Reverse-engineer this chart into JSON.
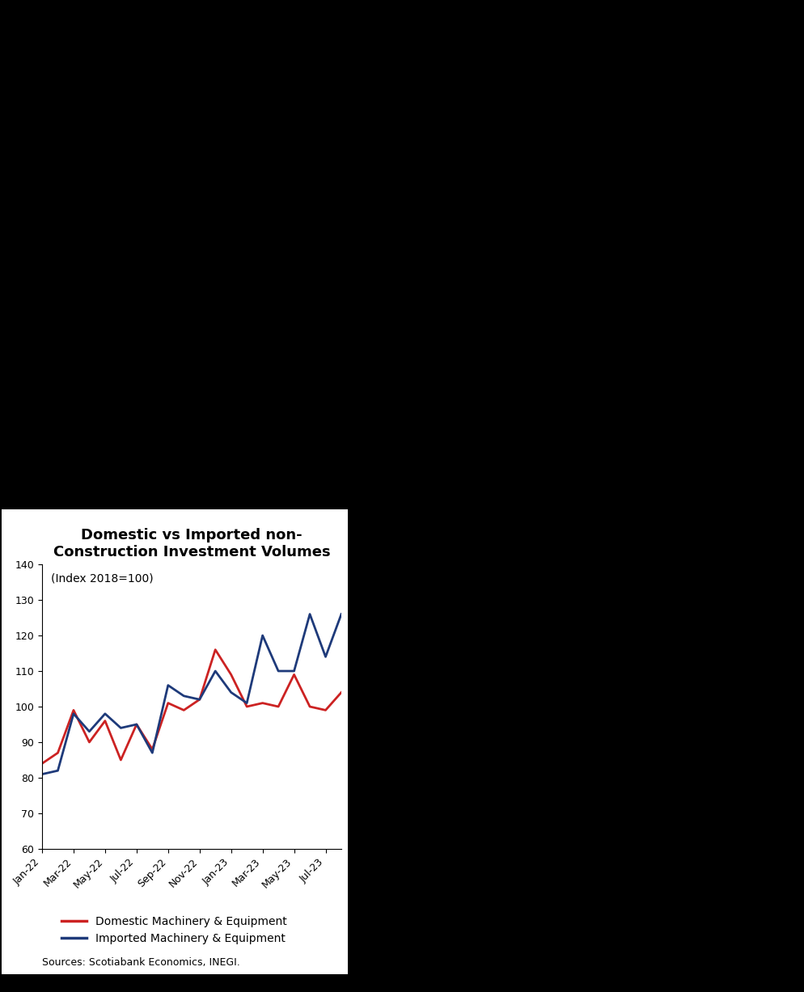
{
  "title": "Domestic vs Imported non-\nConstruction Investment Volumes",
  "subtitle": "(Index 2018=100)",
  "ylim": [
    60,
    140
  ],
  "yticks": [
    60,
    70,
    80,
    90,
    100,
    110,
    120,
    130,
    140
  ],
  "background_color": "#000000",
  "chart_bg_color": "#ffffff",
  "x_labels": [
    "Jan-22",
    "Mar-22",
    "May-22",
    "Jul-22",
    "Sep-22",
    "Nov-22",
    "Jan-23",
    "Mar-23",
    "May-23",
    "Jul-23"
  ],
  "domestic": [
    84,
    87,
    99,
    90,
    96,
    85,
    95,
    88,
    101,
    99,
    102,
    116,
    109,
    100,
    101,
    100,
    109,
    100,
    99,
    104
  ],
  "imported": [
    81,
    82,
    98,
    93,
    98,
    94,
    95,
    87,
    106,
    103,
    102,
    110,
    104,
    101,
    120,
    110,
    110,
    126,
    114,
    126
  ],
  "domestic_color": "#cc2222",
  "imported_color": "#1e3a7a",
  "legend_domestic": "Domestic Machinery & Equipment",
  "legend_imported": "Imported Machinery & Equipment",
  "sources": "Sources: Scotiabank Economics, INEGI.",
  "title_fontsize": 13,
  "subtitle_fontsize": 10,
  "tick_fontsize": 9,
  "legend_fontsize": 10,
  "source_fontsize": 9
}
